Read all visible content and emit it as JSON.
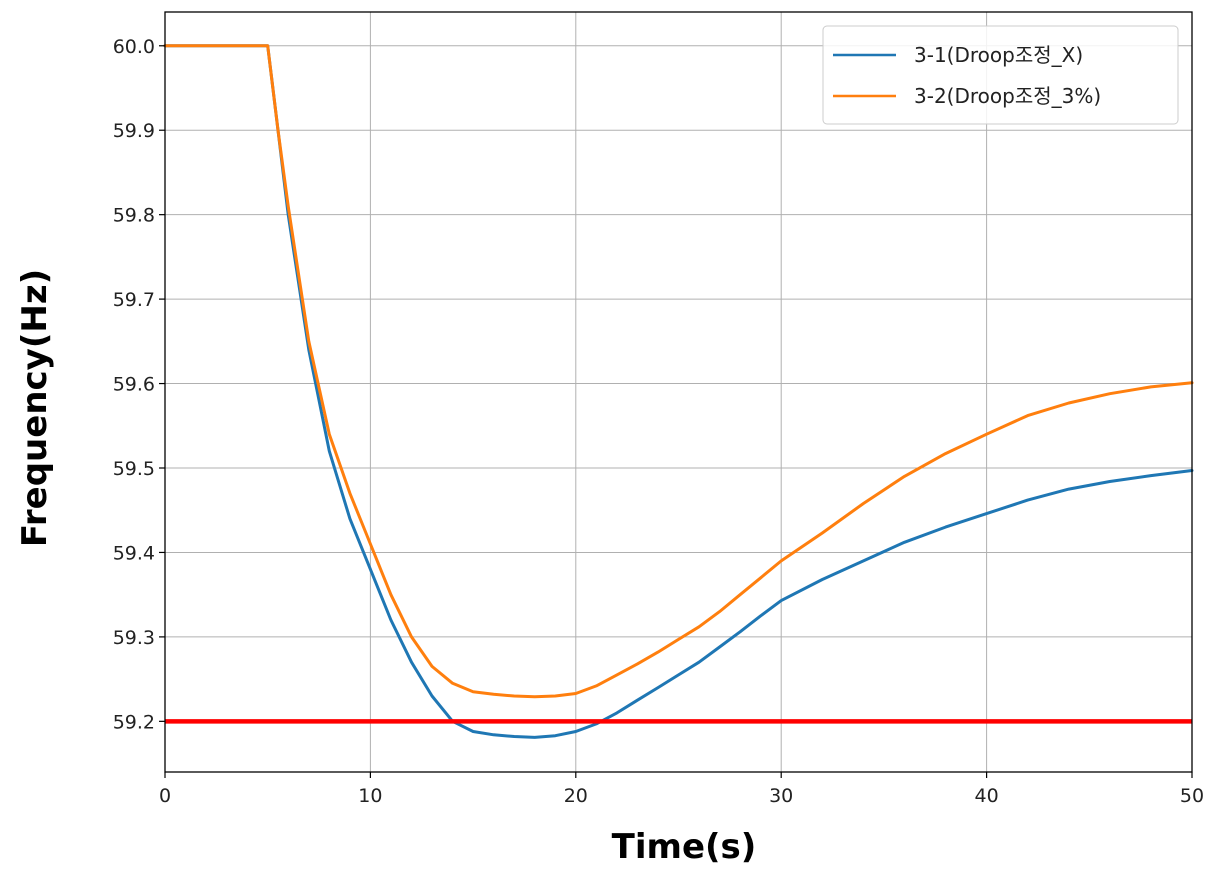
{
  "chart_data": {
    "type": "line",
    "title": "",
    "xlabel": "Time(s)",
    "ylabel": "Frequency(Hz)",
    "xlim": [
      0,
      50
    ],
    "ylim": [
      59.14,
      60.04
    ],
    "xticks": [
      0,
      10,
      20,
      30,
      40,
      50
    ],
    "yticks": [
      59.2,
      59.3,
      59.4,
      59.5,
      59.6,
      59.7,
      59.8,
      59.9,
      60.0
    ],
    "grid": true,
    "legend_position": "top-right",
    "series": [
      {
        "name": "3-1(Droop조정_X)",
        "color": "#1f77b4",
        "x": [
          0,
          4.8,
          5,
          5.5,
          6,
          6.5,
          7,
          8,
          9,
          10,
          11,
          12,
          13,
          14,
          15,
          16,
          17,
          18,
          19,
          20,
          21,
          22,
          23,
          24,
          25,
          26,
          27,
          28,
          29,
          30,
          32,
          34,
          36,
          38,
          40,
          42,
          44,
          46,
          48,
          50
        ],
        "y": [
          60.0,
          60.0,
          60.0,
          59.9,
          59.8,
          59.72,
          59.64,
          59.52,
          59.44,
          59.38,
          59.32,
          59.27,
          59.23,
          59.2,
          59.188,
          59.184,
          59.182,
          59.181,
          59.183,
          59.188,
          59.197,
          59.21,
          59.225,
          59.24,
          59.255,
          59.27,
          59.288,
          59.306,
          59.325,
          59.343,
          59.368,
          59.39,
          59.412,
          59.43,
          59.446,
          59.462,
          59.475,
          59.484,
          59.491,
          59.497
        ]
      },
      {
        "name": "3-2(Droop조정_3%)",
        "color": "#ff7f0e",
        "x": [
          0,
          4.8,
          5,
          5.5,
          6,
          6.5,
          7,
          8,
          9,
          10,
          11,
          12,
          13,
          14,
          15,
          16,
          17,
          18,
          19,
          20,
          21,
          22,
          23,
          24,
          25,
          26,
          27,
          28,
          29,
          30,
          32,
          34,
          36,
          38,
          40,
          42,
          44,
          46,
          48,
          50
        ],
        "y": [
          60.0,
          60.0,
          60.0,
          59.9,
          59.81,
          59.73,
          59.65,
          59.54,
          59.47,
          59.41,
          59.35,
          59.3,
          59.265,
          59.245,
          59.235,
          59.232,
          59.23,
          59.229,
          59.23,
          59.233,
          59.242,
          59.255,
          59.268,
          59.282,
          59.297,
          59.312,
          59.33,
          59.35,
          59.37,
          59.39,
          59.423,
          59.458,
          59.49,
          59.517,
          59.54,
          59.562,
          59.577,
          59.588,
          59.596,
          59.601
        ]
      }
    ],
    "reference_lines": [
      {
        "y": 59.2,
        "color": "#ff0000"
      }
    ]
  }
}
